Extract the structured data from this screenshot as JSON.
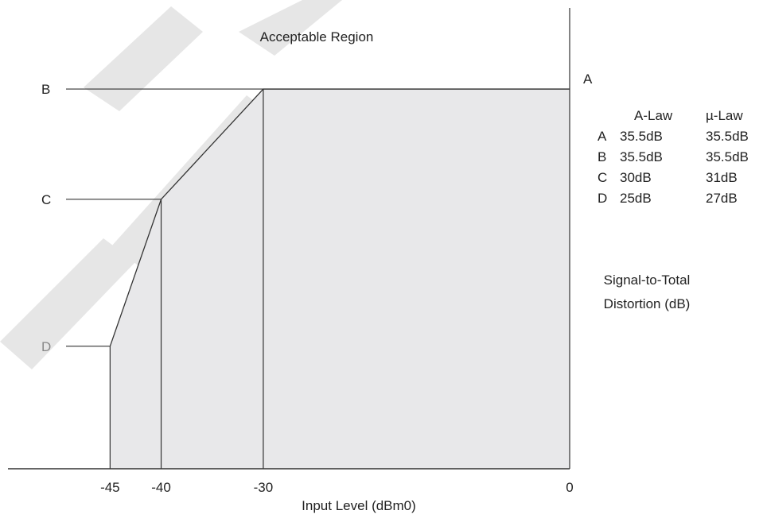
{
  "chart_data": {
    "type": "area",
    "title": "Acceptable Region",
    "xlabel": "Input Level (dBm0)",
    "ylabel": "Signal-to-Total Distortion (dB)",
    "ylabel_lines": [
      "Signal-to-Total",
      "Distortion (dB)"
    ],
    "x_ticks": [
      -45,
      -40,
      -30,
      0
    ],
    "x_tick_labels": [
      "-45",
      "-40",
      "-30",
      "0"
    ],
    "xlim": [
      -55,
      0
    ],
    "ylim": [
      20,
      38
    ],
    "mask_points": [
      {
        "x": -45,
        "y": 25
      },
      {
        "x": -40,
        "y": 31
      },
      {
        "x": -30,
        "y": 35.5
      },
      {
        "x": 0,
        "y": 35.5
      }
    ],
    "level_labels": [
      {
        "label": "B",
        "y": 35.5,
        "x_end": -30,
        "color": "#222222"
      },
      {
        "label": "C",
        "y": 31,
        "x_end": -40,
        "color": "#222222"
      },
      {
        "label": "D",
        "y": 25,
        "x_end": -45,
        "color": "#888888"
      }
    ],
    "corner_label": {
      "label": "A",
      "y": 35.5
    },
    "table": {
      "headers": [
        "",
        "A-Law",
        "µ-Law"
      ],
      "rows": [
        [
          "A",
          "35.5dB",
          "35.5dB"
        ],
        [
          "B",
          "35.5dB",
          "35.5dB"
        ],
        [
          "C",
          "30dB",
          "31dB"
        ],
        [
          "D",
          "25dB",
          "27dB"
        ]
      ]
    },
    "colors": {
      "fill": "#e8e8ea",
      "line": "#333333",
      "watermark": "#e0e0e0"
    }
  }
}
